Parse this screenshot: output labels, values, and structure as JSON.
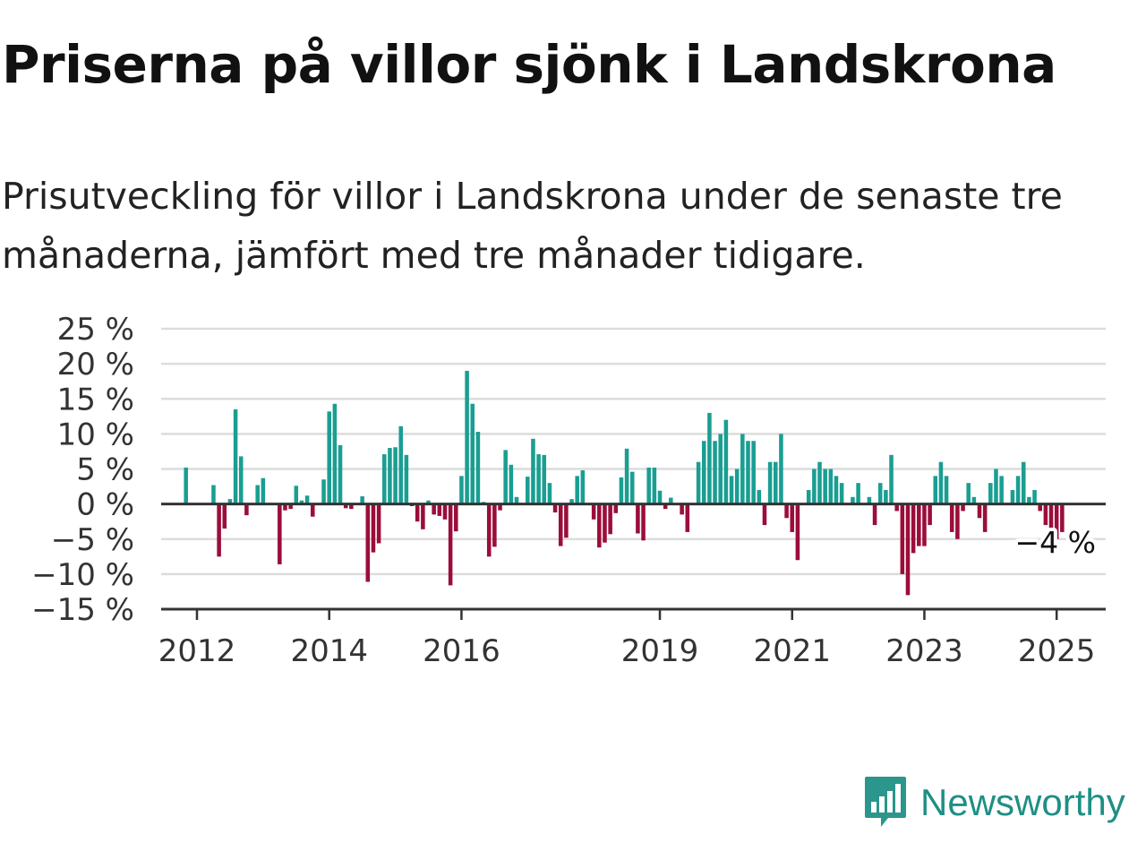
{
  "title": "Priserna på villor sjönk i Landskrona",
  "subtitle": "Prisutveckling för villor i Landskrona under de senaste tre månaderna, jämfört med tre månader tidigare.",
  "brand": {
    "name": "Newsworthy",
    "color": "#2a968c",
    "logo_icon": "bar-chart-speech-bubble-icon"
  },
  "colors": {
    "positive": "#1a9e92",
    "negative": "#9b0d3a",
    "grid": "#dcdcdc",
    "axis": "#333333"
  },
  "chart_data": {
    "type": "bar",
    "x_axis": {
      "ticks": [
        "2012",
        "2014",
        "2016",
        "2019",
        "2021",
        "2023",
        "2025"
      ]
    },
    "y_axis": {
      "ylim": [
        -15,
        25
      ],
      "ticks": [
        25,
        20,
        15,
        10,
        5,
        0,
        -5,
        -10,
        -15
      ],
      "tick_labels": [
        "25 %",
        "20 %",
        "15 %",
        "10 %",
        "5 %",
        "0 %",
        "−5 %",
        "−10 %",
        "−15 %"
      ]
    },
    "grid": true,
    "x_start": "2011-11",
    "x_step": "month",
    "annotation": {
      "label": "−4 %",
      "value": -4
    },
    "values": [
      5.2,
      0,
      0,
      0,
      0,
      2.7,
      -7.5,
      -3.5,
      0.7,
      13.5,
      6.8,
      -1.6,
      0,
      2.7,
      3.7,
      0,
      0,
      -8.6,
      -0.9,
      -0.7,
      2.6,
      0.5,
      1.2,
      -1.8,
      0,
      3.5,
      13.2,
      14.3,
      8.4,
      -0.6,
      -0.7,
      0,
      1.1,
      -11.1,
      -6.9,
      -5.6,
      7.1,
      8,
      8.1,
      11.1,
      7,
      -0.3,
      -2.5,
      -3.6,
      0.5,
      -1.5,
      -1.7,
      -2.2,
      -11.6,
      -3.9,
      4,
      19,
      14.3,
      10.3,
      0.3,
      -7.5,
      -6.1,
      -0.9,
      7.7,
      5.6,
      1,
      0,
      3.9,
      9.3,
      7.1,
      7,
      3,
      -1.2,
      -6,
      -4.8,
      0.7,
      4,
      4.8,
      0,
      -2.2,
      -6.2,
      -5.5,
      -4.3,
      -1.3,
      3.8,
      7.9,
      4.6,
      -4.2,
      -5.2,
      5.2,
      5.2,
      1.9,
      -0.7,
      0.9,
      0,
      -1.5,
      -4,
      0,
      6,
      9,
      13,
      9,
      10,
      12,
      4,
      5,
      10,
      9,
      9,
      2,
      -3,
      6,
      6,
      10,
      -2,
      -4,
      -8,
      0,
      2,
      5,
      6,
      5,
      5,
      4,
      3,
      0,
      1,
      3,
      0,
      1,
      -3,
      3,
      2,
      7,
      -1,
      -10,
      -13,
      -7,
      -6,
      -6,
      -3,
      4,
      6,
      4,
      -4,
      -5,
      -1,
      3,
      1,
      -2,
      -4,
      3,
      5,
      4,
      0,
      2,
      4,
      6,
      1,
      2,
      -1,
      -3,
      -6,
      -5,
      -4
    ]
  }
}
